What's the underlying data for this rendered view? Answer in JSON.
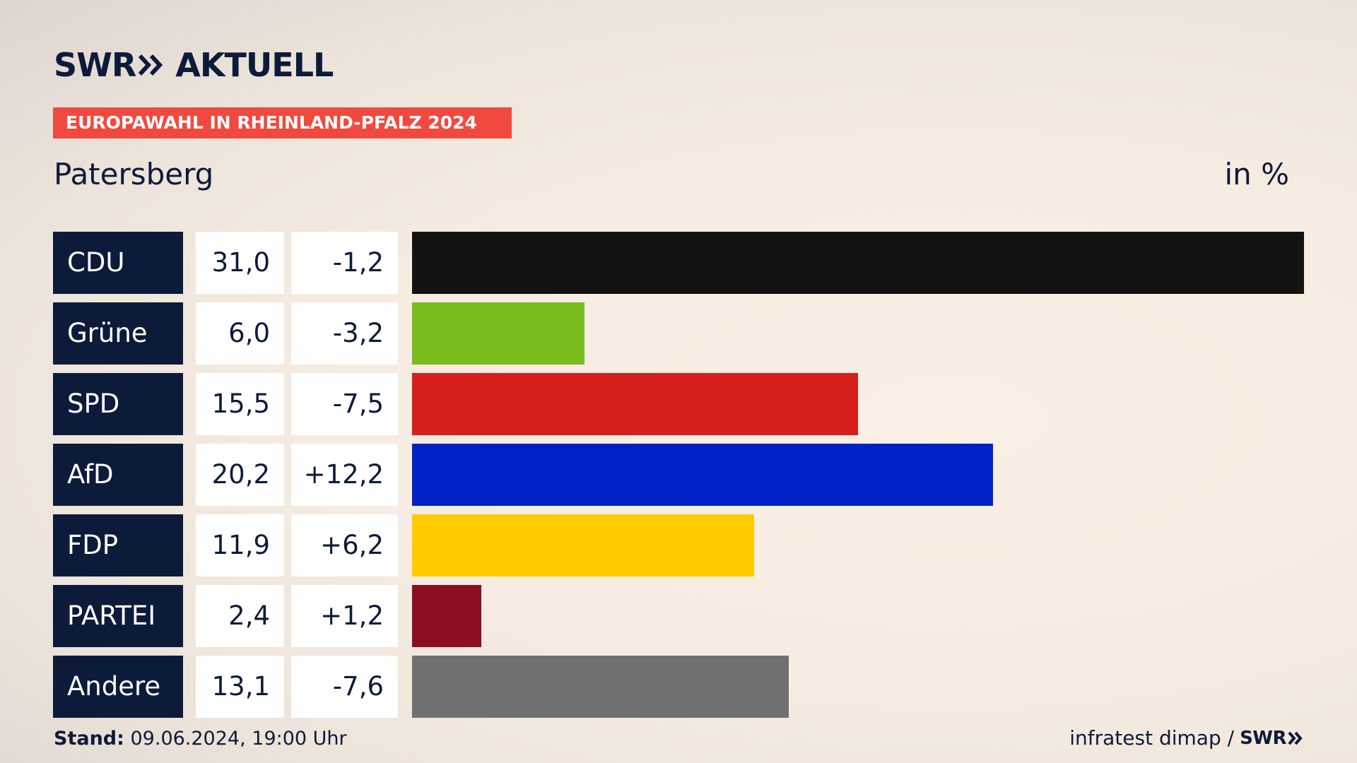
{
  "brand": {
    "logo_left": "SWR",
    "logo_right": "AKTUELL",
    "footer_logo": "SWR",
    "color": "#0d1b3a"
  },
  "banner": {
    "label": "EUROPAWAHL IN RHEINLAND-PFALZ 2024",
    "color": "#f0493f"
  },
  "header": {
    "location": "Patersberg",
    "unit": "in %"
  },
  "footer": {
    "stand_label": "Stand:",
    "stand_value": " 09.06.2024, 19:00 Uhr",
    "source": "infratest dimap /"
  },
  "chart_data": {
    "type": "bar",
    "orientation": "horizontal",
    "categories": [
      "CDU",
      "Grüne",
      "SPD",
      "AfD",
      "FDP",
      "PARTEI",
      "Andere"
    ],
    "values": [
      31.0,
      6.0,
      15.5,
      20.2,
      11.9,
      2.4,
      13.1
    ],
    "value_labels": [
      "31,0",
      "6,0",
      "15,5",
      "20,2",
      "11,9",
      "2,4",
      "13,1"
    ],
    "diff_labels": [
      "-1,2",
      "-3,2",
      "-7,5",
      "+12,2",
      "+6,2",
      "+1,2",
      "-7,6"
    ],
    "colors": [
      "#131313",
      "#78bd1d",
      "#d71f1d",
      "#0021c8",
      "#ffcc00",
      "#8b0e22",
      "#6f7071"
    ],
    "xlim": [
      0,
      31.0
    ],
    "grid": false
  }
}
